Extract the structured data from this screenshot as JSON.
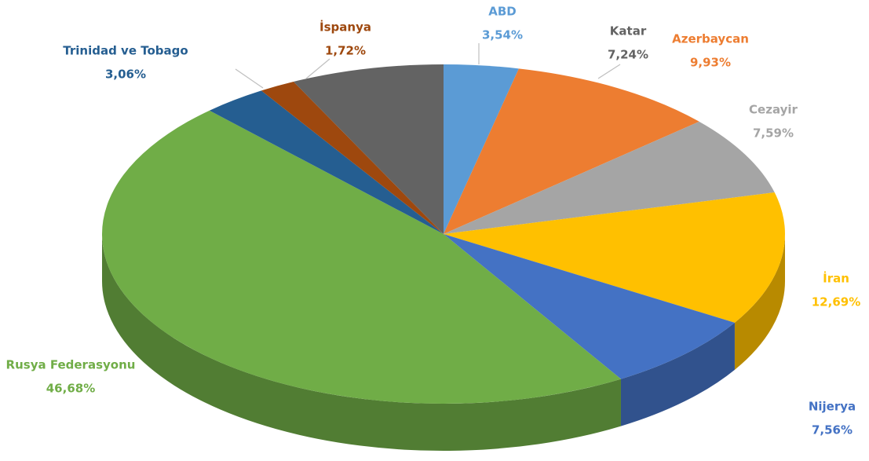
{
  "chart_data": {
    "type": "pie",
    "categories": [
      "ABD",
      "Azerbaycan",
      "Cezayir",
      "İran",
      "Nijerya",
      "Rusya Federasyonu",
      "Trinidad ve Tobago",
      "İspanya",
      "Katar"
    ],
    "values": [
      3.54,
      9.93,
      7.59,
      12.69,
      7.56,
      46.68,
      3.06,
      1.72,
      7.24
    ],
    "value_labels": [
      "3,54%",
      "9,93%",
      "7,59%",
      "12,69%",
      "7,56%",
      "46,68%",
      "3,06%",
      "1,72%",
      "7,24%"
    ],
    "colors": [
      "#5b9bd5",
      "#ed7d31",
      "#a5a5a5",
      "#ffc000",
      "#4472c4",
      "#70ad47",
      "#255e91",
      "#9e480e",
      "#636363"
    ]
  }
}
